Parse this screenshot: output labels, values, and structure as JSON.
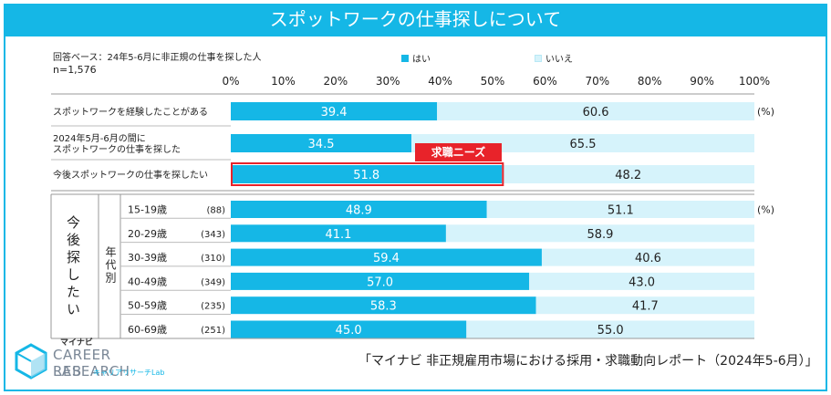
{
  "title": "スポットワークの仕事探しについて",
  "base_note": "回答ベース：24年5-6月に非正規の仕事を探した人",
  "n_note": "n=1,576",
  "chart_data": {
    "type": "bar",
    "stacked": true,
    "orientation": "horizontal",
    "title": "スポットワークの仕事探しについて",
    "x_ticks": [
      "0%",
      "10%",
      "20%",
      "30%",
      "40%",
      "50%",
      "60%",
      "70%",
      "80%",
      "90%",
      "100%"
    ],
    "xlim": [
      0,
      100
    ],
    "legend": [
      {
        "label": "はい",
        "color": "#15b7e6"
      },
      {
        "label": "いいえ",
        "color": "#d6f3fb"
      }
    ],
    "rows": [
      {
        "label": "スポットワークを経験したことがある",
        "yes": 39.4,
        "no": 60.6,
        "yes_label": "39.4",
        "no_label": "60.6",
        "unit": "(%)"
      },
      {
        "label": "2024年5月-6月の間に スポットワークの仕事を探した",
        "yes": 34.5,
        "no": 65.5,
        "yes_label": "34.5",
        "no_label": "65.5"
      },
      {
        "label": "今後スポットワークの仕事を探したい",
        "yes": 51.8,
        "no": 48.2,
        "yes_label": "51.8",
        "no_label": "48.2",
        "highlight": true
      }
    ],
    "highlight_tag": "求職ニーズ",
    "group_title": "今後探したい",
    "group_subtitle": "年代別",
    "age_rows": [
      {
        "label": "15-19歳",
        "n": "(88)",
        "yes": 48.9,
        "no": 51.1,
        "yes_label": "48.9",
        "no_label": "51.1",
        "unit": "(%)"
      },
      {
        "label": "20-29歳",
        "n": "(343)",
        "yes": 41.1,
        "no": 58.9,
        "yes_label": "41.1",
        "no_label": "58.9"
      },
      {
        "label": "30-39歳",
        "n": "(310)",
        "yes": 59.4,
        "no": 40.6,
        "yes_label": "59.4",
        "no_label": "40.6"
      },
      {
        "label": "40-49歳",
        "n": "(349)",
        "yes": 57.0,
        "no": 43.0,
        "yes_label": "57.0",
        "no_label": "43.0"
      },
      {
        "label": "50-59歳",
        "n": "(235)",
        "yes": 58.3,
        "no": 41.7,
        "yes_label": "58.3",
        "no_label": "41.7"
      },
      {
        "label": "60-69歳",
        "n": "(251)",
        "yes": 45.0,
        "no": 55.0,
        "yes_label": "45.0",
        "no_label": "55.0"
      }
    ]
  },
  "logo": {
    "brand_small": "マイナビ",
    "line1": "CAREER RESEARCH",
    "line2": "LAB",
    "jp": "キャリアリサーチLab"
  },
  "citation": "「マイナビ 非正規雇用市場における採用・求職動向レポート（2024年5-6月）」",
  "colors": {
    "accent": "#15b7e6",
    "light": "#d6f3fb",
    "highlight": "#e8232a"
  }
}
